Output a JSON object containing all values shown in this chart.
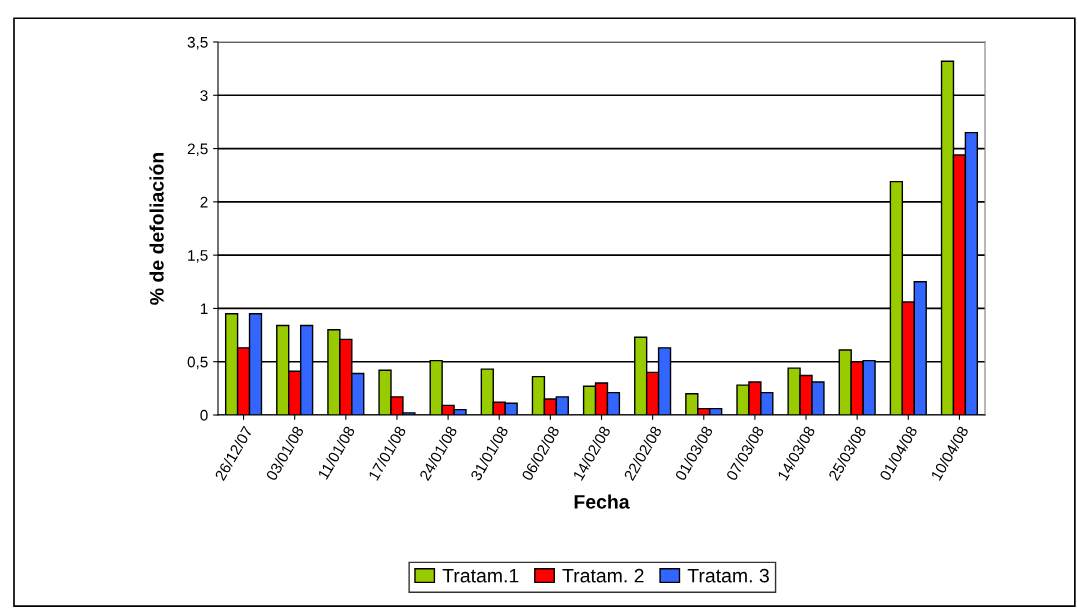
{
  "chart_data": {
    "type": "bar",
    "xlabel": "Fecha",
    "ylabel": "% de defoliación",
    "categories": [
      "26/12/07",
      "03/01/08",
      "11/01/08",
      "17/01/08",
      "24/01/08",
      "31/01/08",
      "06/02/08",
      "14/02/08",
      "22/02/08",
      "01/03/08",
      "07/03/08",
      "14/03/08",
      "25/03/08",
      "01/04/08",
      "10/04/08"
    ],
    "series": [
      {
        "name": "Tratam.1",
        "color": "#99cc00",
        "values": [
          0.95,
          0.84,
          0.8,
          0.42,
          0.51,
          0.43,
          0.36,
          0.27,
          0.73,
          0.2,
          0.28,
          0.44,
          0.61,
          2.19,
          3.32
        ]
      },
      {
        "name": "Tratam. 2",
        "color": "#ff0000",
        "values": [
          0.63,
          0.41,
          0.71,
          0.17,
          0.09,
          0.12,
          0.15,
          0.3,
          0.4,
          0.06,
          0.31,
          0.37,
          0.5,
          1.06,
          2.44
        ]
      },
      {
        "name": "Tratam. 3",
        "color": "#3366ff",
        "values": [
          0.95,
          0.84,
          0.39,
          0.02,
          0.05,
          0.11,
          0.17,
          0.21,
          0.63,
          0.06,
          0.21,
          0.31,
          0.51,
          1.25,
          2.65
        ]
      }
    ],
    "ylim": [
      0,
      3.5
    ],
    "yticks": [
      0,
      {
        "value": 0.5,
        "label": "0,5"
      },
      1,
      {
        "value": 1.5,
        "label": "1,5"
      },
      2,
      {
        "value": 2.5,
        "label": "2,5"
      },
      3,
      {
        "value": 3.5,
        "label": "3,5"
      }
    ],
    "grid": "y",
    "legend": "bottom"
  }
}
